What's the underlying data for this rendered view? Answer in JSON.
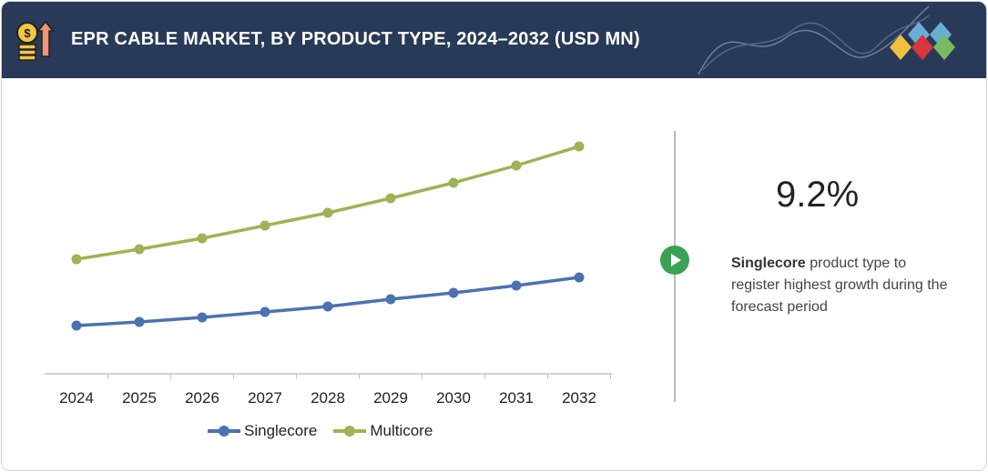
{
  "header": {
    "title": "EPR CABLE MARKET, BY PRODUCT TYPE, 2024–2032 (USD MN)",
    "icon": "money-growth-icon",
    "logo": "diamond-logo"
  },
  "chart_data": {
    "type": "line",
    "title": "EPR CABLE MARKET, BY PRODUCT TYPE, 2024–2032 (USD MN)",
    "categories": [
      "2024",
      "2025",
      "2026",
      "2027",
      "2028",
      "2029",
      "2030",
      "2031",
      "2032"
    ],
    "series": [
      {
        "name": "Singlecore",
        "color": "#4a72b0",
        "values": [
          53,
          57,
          62,
          68,
          74,
          82,
          89,
          97,
          106
        ]
      },
      {
        "name": "Multicore",
        "color": "#9cb453",
        "values": [
          126,
          137,
          149,
          163,
          177,
          193,
          210,
          229,
          250
        ]
      }
    ],
    "ylim": [
      0,
      280
    ],
    "y_axis_shown": false,
    "grid": false,
    "legend": "bottom"
  },
  "insight": {
    "value": "9.2%",
    "highlight": "Singlecore",
    "text": " product type to register highest growth during the forecast period",
    "icon": "play-icon"
  }
}
